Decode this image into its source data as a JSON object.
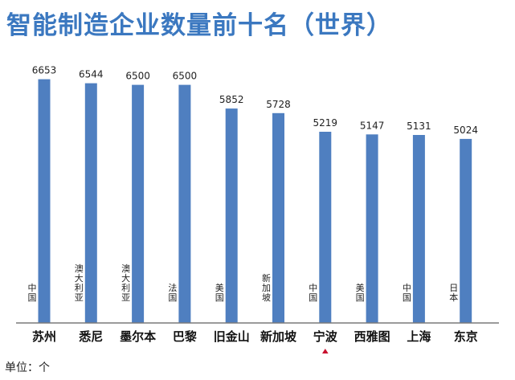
{
  "chart_data": {
    "type": "bar",
    "title": "智能制造企业数量前十名（世界）",
    "categories": [
      "苏州",
      "悉尼",
      "墨尔本",
      "巴黎",
      "旧金山",
      "新加坡",
      "宁波",
      "西雅图",
      "上海",
      "东京"
    ],
    "countries": [
      "中国",
      "澳大利亚",
      "澳大利亚",
      "法国",
      "美国",
      "新加坡",
      "中国",
      "美国",
      "中国",
      "日本"
    ],
    "values": [
      6653,
      6544,
      6500,
      6500,
      5852,
      5728,
      5219,
      5147,
      5131,
      5024
    ],
    "value_labels": [
      "6653",
      "6544",
      "6500",
      "6500",
      "5852",
      "5728",
      "5219",
      "5147",
      "5131",
      "5024"
    ],
    "highlight_category": "宁波",
    "unit": "单位：个",
    "xlabel": "",
    "ylabel": "",
    "ylim": [
      0,
      7500
    ],
    "grid": false,
    "legend": "none",
    "colors": {
      "bar": "#4f7fc0",
      "title": "#3b78c0",
      "axis": "#7a7a7a",
      "marker": "#c8102e"
    }
  }
}
